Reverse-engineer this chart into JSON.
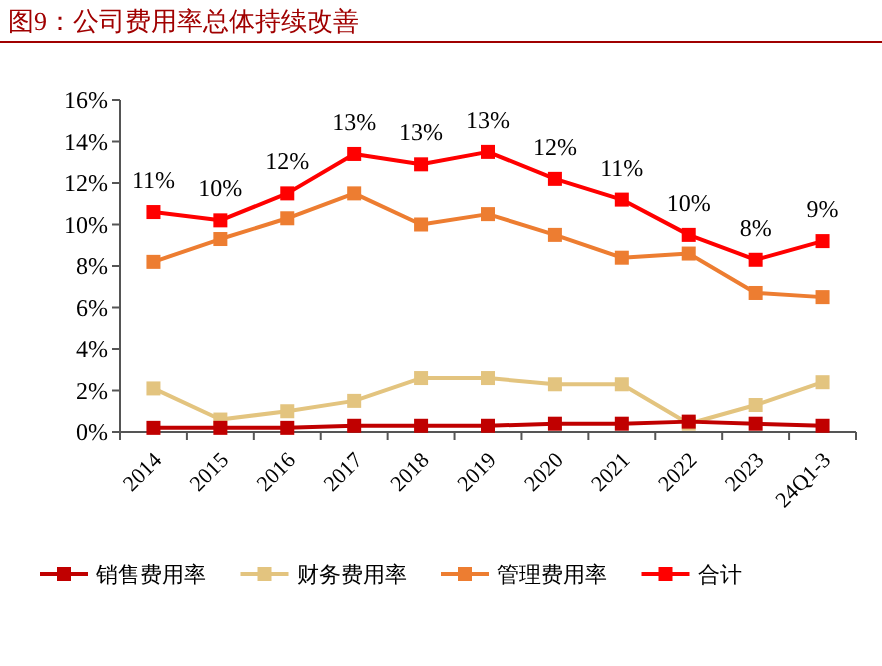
{
  "chart_data": {
    "type": "line",
    "title": "图9：公司费用率总体持续改善",
    "categories": [
      "2014",
      "2015",
      "2016",
      "2017",
      "2018",
      "2019",
      "2020",
      "2021",
      "2022",
      "2023",
      "24Q1-3"
    ],
    "series": [
      {
        "name": "销售费用率",
        "color": "#c00000",
        "values": [
          0.2,
          0.2,
          0.2,
          0.3,
          0.3,
          0.3,
          0.4,
          0.4,
          0.5,
          0.4,
          0.3
        ]
      },
      {
        "name": "财务费用率",
        "color": "#e3c47f",
        "values": [
          2.1,
          0.6,
          1.0,
          1.5,
          2.6,
          2.6,
          2.3,
          2.3,
          0.4,
          1.3,
          2.4
        ]
      },
      {
        "name": "管理费用率",
        "color": "#ed7d31",
        "values": [
          8.2,
          9.3,
          10.3,
          11.5,
          10.0,
          10.5,
          9.5,
          8.4,
          8.6,
          6.7,
          6.5
        ]
      },
      {
        "name": "合计",
        "color": "#ff0000",
        "values": [
          10.6,
          10.2,
          11.5,
          13.4,
          12.9,
          13.5,
          12.2,
          11.2,
          9.5,
          8.3,
          9.2
        ],
        "value_labels": [
          "11%",
          "10%",
          "12%",
          "13%",
          "13%",
          "13%",
          "12%",
          "11%",
          "10%",
          "8%",
          "9%"
        ]
      }
    ],
    "ylim": [
      0,
      16
    ],
    "yticks": [
      {
        "value": 0,
        "label": "0%"
      },
      {
        "value": 2,
        "label": "2%"
      },
      {
        "value": 4,
        "label": "4%"
      },
      {
        "value": 6,
        "label": "6%"
      },
      {
        "value": 8,
        "label": "8%"
      },
      {
        "value": 10,
        "label": "10%"
      },
      {
        "value": 12,
        "label": "12%"
      },
      {
        "value": 14,
        "label": "14%"
      },
      {
        "value": 16,
        "label": "16%"
      }
    ],
    "marker": "square",
    "line_style": "solid",
    "grid": false,
    "legend": "bottom"
  }
}
